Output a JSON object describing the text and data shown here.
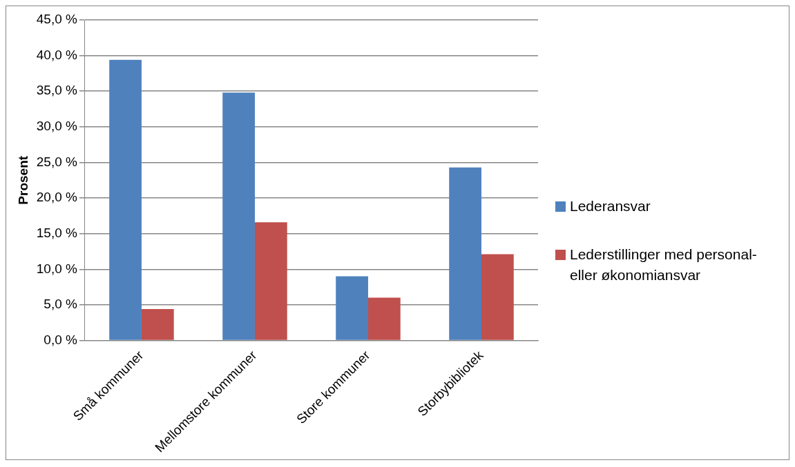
{
  "chart_data": {
    "type": "bar",
    "ylabel": "Prosent",
    "categories": [
      "Små kommuner",
      "Mellomstore kommuner",
      "Store kommuner",
      "Storbybibliotek"
    ],
    "series": [
      {
        "name": "Lederansvar",
        "color": "#4f81bd",
        "values": [
          39.4,
          34.8,
          9.0,
          24.3
        ]
      },
      {
        "name": "Lederstillinger med personal- eller økonomiansvar",
        "color": "#c0504d",
        "values": [
          4.4,
          16.6,
          6.0,
          12.1
        ]
      }
    ],
    "ylim": [
      0,
      45
    ],
    "yticks": [
      {
        "value": 0,
        "label": "0,0 %"
      },
      {
        "value": 5,
        "label": "5,0 %"
      },
      {
        "value": 10,
        "label": "10,0 %"
      },
      {
        "value": 15,
        "label": "15,0 %"
      },
      {
        "value": 20,
        "label": "20,0 %"
      },
      {
        "value": 25,
        "label": "25,0 %"
      },
      {
        "value": 30,
        "label": "30,0 %"
      },
      {
        "value": 35,
        "label": "35,0 %"
      },
      {
        "value": 40,
        "label": "40,0 %"
      },
      {
        "value": 45,
        "label": "45,0 %"
      }
    ],
    "grid": "y",
    "legend": "right"
  }
}
